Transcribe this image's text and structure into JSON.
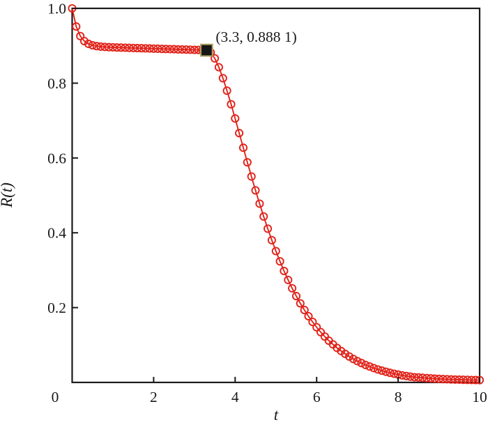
{
  "figure": {
    "background": "#ffffff",
    "frame_color": "#1a1a1a",
    "text_color": "#1a1a1a"
  },
  "chart_data": {
    "type": "line",
    "title": "",
    "xlabel": "t",
    "ylabel": "R(t)",
    "xlim": [
      0,
      10
    ],
    "ylim": [
      0,
      1.0
    ],
    "grid": false,
    "legend": "none",
    "x_ticks": [
      "0",
      "2",
      "4",
      "6",
      "8",
      "10"
    ],
    "y_ticks": [
      "0.2",
      "0.4",
      "0.6",
      "0.8",
      "1.0"
    ],
    "series": [
      {
        "name": "R(t)",
        "marker": "open-circle",
        "color": "#e2231a",
        "x": [
          0.0,
          0.1,
          0.2,
          0.3,
          0.4,
          0.5,
          0.6,
          0.7,
          0.8,
          0.9,
          1.0,
          1.1,
          1.2,
          1.3,
          1.4,
          1.5,
          1.6,
          1.7,
          1.8,
          1.9,
          2.0,
          2.1,
          2.2,
          2.3,
          2.4,
          2.5,
          2.6,
          2.7,
          2.8,
          2.9,
          3.0,
          3.1,
          3.2,
          3.3,
          3.4,
          3.5,
          3.6,
          3.7,
          3.8,
          3.9,
          4.0,
          4.1,
          4.2,
          4.3,
          4.4,
          4.5,
          4.6,
          4.7,
          4.8,
          4.9,
          5.0,
          5.1,
          5.2,
          5.3,
          5.4,
          5.5,
          5.6,
          5.7,
          5.8,
          5.9,
          6.0,
          6.1,
          6.2,
          6.3,
          6.4,
          6.5,
          6.6,
          6.7,
          6.8,
          6.9,
          7.0,
          7.1,
          7.2,
          7.3,
          7.4,
          7.5,
          7.6,
          7.7,
          7.8,
          7.9,
          8.0,
          8.1,
          8.2,
          8.3,
          8.4,
          8.5,
          8.6,
          8.7,
          8.8,
          8.9,
          9.0,
          9.1,
          9.2,
          9.3,
          9.4,
          9.5,
          9.6,
          9.7,
          9.8,
          9.9,
          10.0
        ],
        "y": [
          1.0,
          0.9514,
          0.9259,
          0.9124,
          0.9052,
          0.9013,
          0.8991,
          0.8978,
          0.8969,
          0.8963,
          0.8959,
          0.8954,
          0.8951,
          0.8947,
          0.8944,
          0.8941,
          0.8937,
          0.8934,
          0.8931,
          0.8927,
          0.8924,
          0.8921,
          0.8917,
          0.8914,
          0.8911,
          0.8908,
          0.8904,
          0.8901,
          0.8898,
          0.8894,
          0.8891,
          0.8888,
          0.8885,
          0.8881,
          0.8822,
          0.8663,
          0.8427,
          0.8133,
          0.7799,
          0.7435,
          0.7055,
          0.6665,
          0.6273,
          0.5885,
          0.5504,
          0.5134,
          0.4778,
          0.4436,
          0.411,
          0.3802,
          0.3511,
          0.3237,
          0.2979,
          0.2739,
          0.2515,
          0.2307,
          0.2113,
          0.1934,
          0.1769,
          0.1616,
          0.1475,
          0.1345,
          0.1226,
          0.1116,
          0.1016,
          0.0924,
          0.084,
          0.0763,
          0.0693,
          0.0628,
          0.057,
          0.0517,
          0.0468,
          0.0424,
          0.0384,
          0.0347,
          0.0314,
          0.0284,
          0.0257,
          0.0232,
          0.021,
          0.0189,
          0.0171,
          0.0154,
          0.0139,
          0.0135,
          0.0125,
          0.0116,
          0.0108,
          0.0101,
          0.0095,
          0.009,
          0.0085,
          0.0081,
          0.0077,
          0.0074,
          0.0071,
          0.0068,
          0.0066,
          0.0064,
          0.0062
        ]
      }
    ],
    "annotations": [
      {
        "text": "(3.3, 0.888 1)",
        "x": 3.3,
        "y": 0.8881,
        "marker": "filled-square",
        "marker_fill": "#161616",
        "marker_edge": "#ab9e62"
      }
    ]
  }
}
